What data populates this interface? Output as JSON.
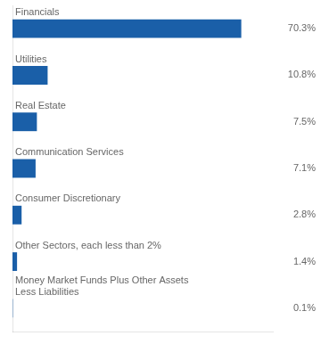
{
  "chart_data": {
    "type": "bar",
    "orientation": "horizontal",
    "categories": [
      "Financials",
      "Utilities",
      "Real Estate",
      "Communication Services",
      "Consumer Discretionary",
      "Other Sectors, each less than 2%",
      "Money Market Funds Plus Other Assets\nLess Liabilities"
    ],
    "values": [
      70.3,
      10.8,
      7.5,
      7.1,
      2.8,
      1.4,
      0.1
    ],
    "value_labels": [
      "70.3%",
      "10.8%",
      "7.5%",
      "7.1%",
      "2.8%",
      "1.4%",
      "0.1%"
    ],
    "data_labels": true,
    "color": "#1a5fa8",
    "xlim": [
      0,
      80
    ],
    "tick_labels": "y",
    "grid": false
  }
}
